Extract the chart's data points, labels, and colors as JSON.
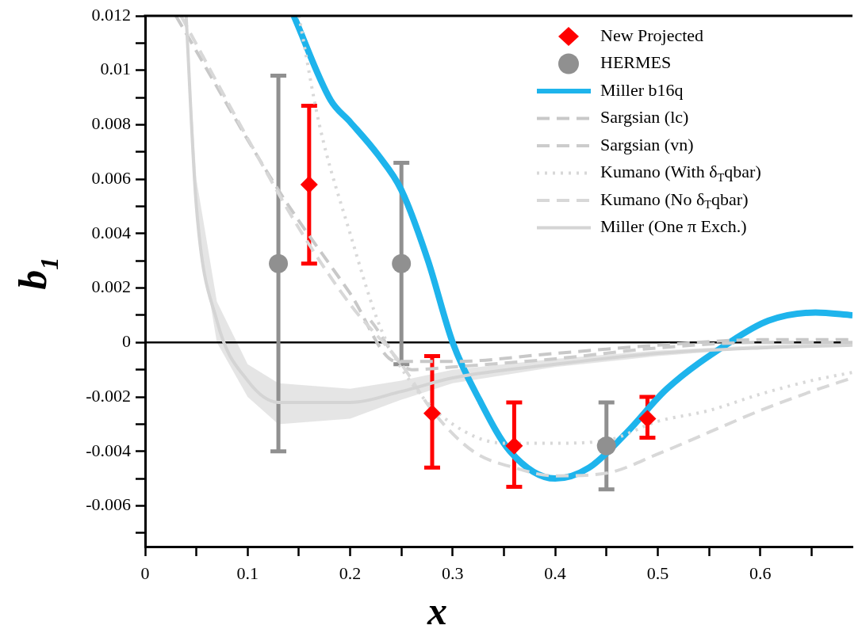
{
  "chart_data": {
    "type": "line",
    "xlabel": "x",
    "ylabel": "b$_{1}$",
    "xlim": [
      0,
      0.69
    ],
    "ylim": [
      -0.0075,
      0.012
    ],
    "xticks": [
      0,
      {
        "value": 0.05,
        "label": null
      },
      0.1,
      {
        "value": 0.15,
        "label": null
      },
      0.2,
      {
        "value": 0.25,
        "label": null
      },
      0.3,
      {
        "value": 0.35,
        "label": null
      },
      0.4,
      {
        "value": 0.45,
        "label": null
      },
      0.5,
      {
        "value": 0.55,
        "label": null
      },
      0.6,
      {
        "value": 0.65,
        "label": null
      }
    ],
    "yticks": [
      {
        "value": -0.007,
        "label": null
      },
      -0.006,
      {
        "value": -0.005,
        "label": null
      },
      -0.004,
      {
        "value": -0.003,
        "label": null
      },
      -0.002,
      {
        "value": -0.001,
        "label": null
      },
      0,
      {
        "value": 0.001,
        "label": null
      },
      0.002,
      {
        "value": 0.003,
        "label": null
      },
      0.004,
      {
        "value": 0.005,
        "label": null
      },
      0.006,
      {
        "value": 0.007,
        "label": null
      },
      0.008,
      {
        "value": 0.009,
        "label": null
      },
      0.01,
      {
        "value": 0.011,
        "label": null
      },
      0.012
    ],
    "grid": false,
    "legend": "top right",
    "ref_lines": [
      {
        "axis": "y",
        "value": 0,
        "color": "#000000"
      }
    ],
    "series": [
      {
        "name": "Miller (One π Exch.)",
        "color": "#d4d4d4",
        "line_style": "solid",
        "marker": "none",
        "x": [
          0.04,
          0.05,
          0.07,
          0.1,
          0.13,
          0.2,
          0.25,
          0.3,
          0.4,
          0.5,
          0.6,
          0.69
        ],
        "values": [
          0.012,
          0.005,
          0.0008,
          -0.0014,
          -0.0022,
          -0.0022,
          -0.0018,
          -0.0013,
          -0.0008,
          -0.0004,
          -0.0002,
          -0.0001
        ],
        "lower": [
          0.012,
          0.0045,
          0.0,
          -0.002,
          -0.003,
          -0.0028,
          -0.0021,
          -0.0015,
          -0.0009,
          -0.0005,
          -0.0002,
          -0.0001
        ],
        "upper": [
          0.012,
          0.006,
          0.0015,
          -0.0008,
          -0.0015,
          -0.0017,
          -0.0014,
          -0.001,
          -0.0006,
          -0.0003,
          -0.0001,
          0
        ]
      },
      {
        "name": "Kumano (No δ$_{T}$qbar)",
        "color": "#d8d8d8",
        "line_style": "dashed",
        "marker": "none",
        "x": [
          0.035,
          0.1,
          0.15,
          0.2,
          0.25,
          0.28,
          0.32,
          0.36,
          0.4,
          0.45,
          0.5,
          0.55,
          0.6,
          0.65,
          0.69
        ],
        "values": [
          0.012,
          0.0075,
          0.0042,
          0.0014,
          -0.0008,
          -0.0025,
          -0.004,
          -0.0046,
          -0.0049,
          -0.0048,
          -0.0041,
          -0.0033,
          -0.0025,
          -0.0018,
          -0.0013
        ]
      },
      {
        "name": "Kumano (With δ$_{T}$qbar)",
        "color": "#d8d8d8",
        "line_style": "dotted",
        "marker": "none",
        "x": [
          0.15,
          0.17,
          0.2,
          0.23,
          0.26,
          0.3,
          0.35,
          0.4,
          0.45,
          0.5,
          0.55,
          0.6,
          0.65,
          0.69
        ],
        "values": [
          0.012,
          0.008,
          0.004,
          0.0005,
          -0.0015,
          -0.003,
          -0.0037,
          -0.0037,
          -0.0036,
          -0.0029,
          -0.0025,
          -0.0019,
          -0.0014,
          -0.0011
        ]
      },
      {
        "name": "Sargsian (vn)",
        "color": "#cccccc",
        "line_style": "dashed",
        "marker": "none",
        "x": [
          0.22,
          0.26,
          0.3,
          0.4,
          0.5,
          0.6,
          0.69
        ],
        "values": [
          0.0008,
          -0.001,
          -0.0009,
          -0.0006,
          -0.0002,
          0,
          0
        ]
      },
      {
        "name": "Sargsian (lc)",
        "color": "#c8c8c8",
        "line_style": "dashed",
        "marker": "none",
        "x": [
          0.03,
          0.13,
          0.2,
          0.245,
          0.3,
          0.4,
          0.5,
          0.6,
          0.69
        ],
        "values": [
          0.012,
          0.0056,
          0.0018,
          -0.0007,
          -0.0007,
          -0.0004,
          -0.0001,
          0.0001,
          0.0001
        ]
      },
      {
        "name": "Miller b16q",
        "color": "#1eb4ec",
        "line_style": "solid",
        "marker": "none",
        "x": [
          0.145,
          0.181,
          0.2,
          0.227,
          0.25,
          0.276,
          0.3,
          0.326,
          0.356,
          0.4,
          0.433,
          0.47,
          0.509,
          0.57,
          0.608,
          0.654,
          0.69
        ],
        "values": [
          0.012,
          0.0089,
          0.0081,
          0.0069,
          0.0056,
          0.003,
          0,
          -0.0021,
          -0.004,
          -0.005,
          -0.0046,
          -0.0033,
          -0.0017,
          0,
          0.0008,
          0.0011,
          0.001
        ]
      },
      {
        "name": "HERMES",
        "type": "scatter",
        "color": "#909090",
        "marker": "circle",
        "x": [
          0.13,
          0.25,
          0.45
        ],
        "values": [
          0.0029,
          0.0029,
          -0.0038
        ],
        "errors": [
          [
            -0.004,
            0.0098
          ],
          [
            -0.0008,
            0.0066
          ],
          [
            -0.0054,
            -0.0022
          ]
        ]
      },
      {
        "name": "New Projected",
        "type": "scatter",
        "color": "#ff0000",
        "marker": "diamond",
        "x": [
          0.16,
          0.28,
          0.36,
          0.49
        ],
        "values": [
          0.0058,
          -0.0026,
          -0.0038,
          -0.0028
        ],
        "errors": [
          [
            0.0029,
            0.0087
          ],
          [
            -0.0046,
            -0.0005
          ],
          [
            -0.0053,
            -0.0022
          ],
          [
            -0.0035,
            -0.002
          ]
        ]
      }
    ]
  }
}
